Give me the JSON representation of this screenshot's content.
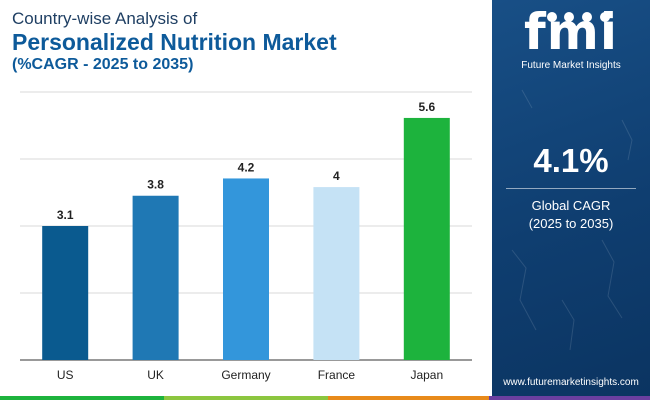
{
  "header": {
    "line1": "Country-wise Analysis of",
    "line2": "Personalized Nutrition Market",
    "line3": "(%CAGR - 2025 to 2035)"
  },
  "chart_data": {
    "type": "bar",
    "categories": [
      "US",
      "UK",
      "Germany",
      "France",
      "Japan"
    ],
    "values": [
      3.1,
      3.8,
      4.2,
      4,
      5.6
    ],
    "data_labels": [
      "3.1",
      "3.8",
      "4.2",
      "4",
      "5.6"
    ],
    "colors": [
      "#0a5a8f",
      "#1f78b4",
      "#3396db",
      "#c5e2f5",
      "#1db33d"
    ],
    "ylim": [
      0,
      6.2
    ],
    "grid": true,
    "title": "Country-wise Analysis of Personalized Nutrition Market (%CAGR - 2025 to 2035)"
  },
  "sidebar": {
    "logo_mark": "fmi",
    "logo_text": "Future Market Insights",
    "cagr_value": "4.1%",
    "cagr_label_line1": "Global CAGR",
    "cagr_label_line2": "(2025 to 2035)",
    "website": "www.futuremarketinsights.com"
  },
  "colors": {
    "grid": "#d9d9d9",
    "axis": "#333333",
    "label": "#222222",
    "bottom_bar": [
      "#1db33d",
      "#8cc63f",
      "#e88a1a",
      "#6b3fa0"
    ]
  }
}
